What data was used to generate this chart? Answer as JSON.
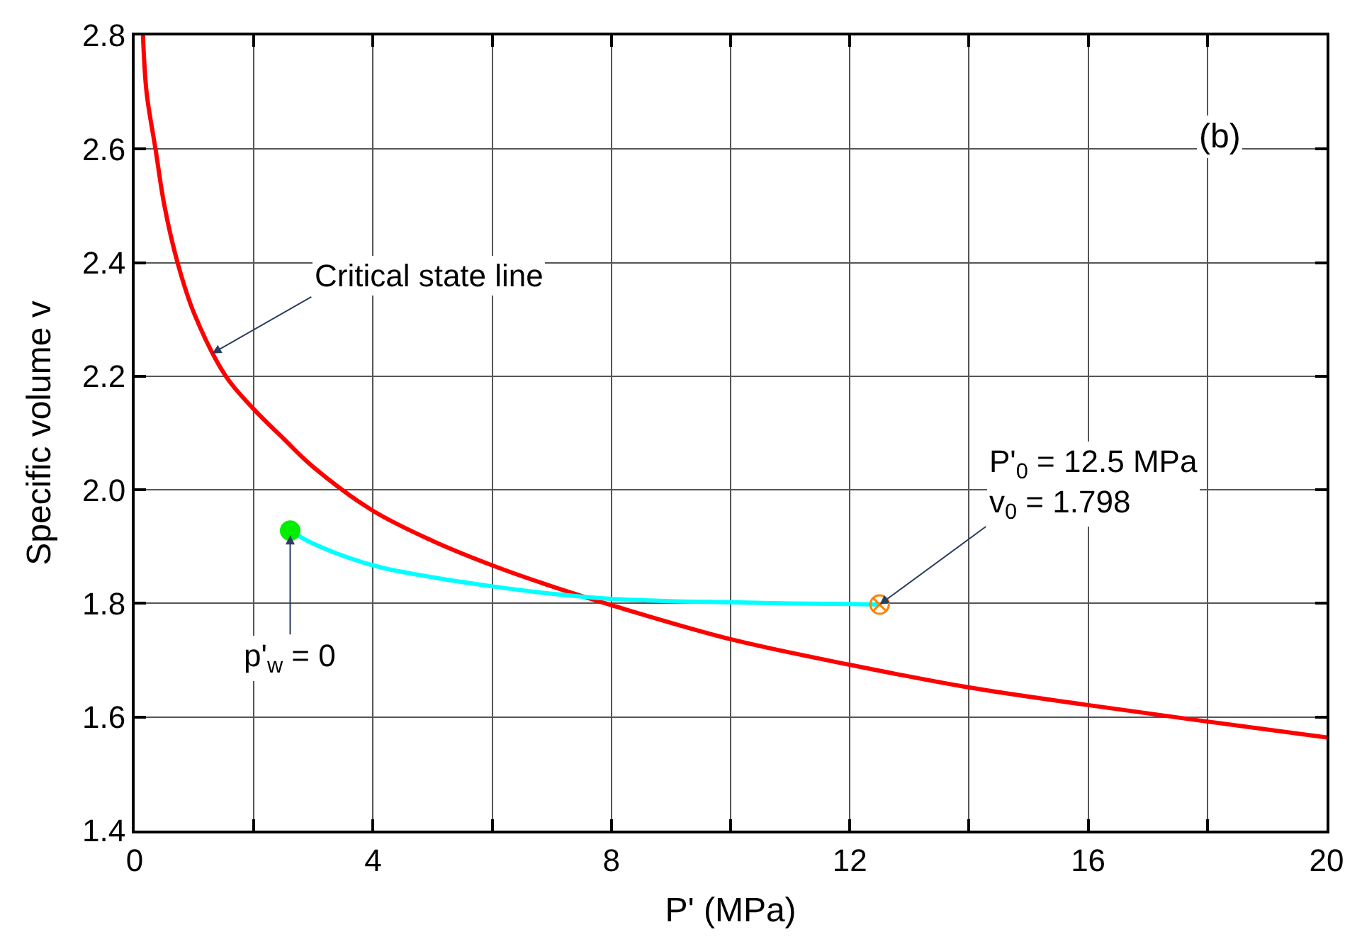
{
  "chart_data": {
    "type": "line",
    "xlabel": "P' (MPa)",
    "ylabel": "Specific volume v",
    "xlim": [
      0,
      20
    ],
    "ylim": [
      1.4,
      2.8
    ],
    "xticks": [
      0,
      {
        "value": 2,
        "label": null
      },
      4,
      {
        "value": 6,
        "label": null
      },
      8,
      {
        "value": 10,
        "label": null
      },
      12,
      {
        "value": 14,
        "label": null
      },
      16,
      {
        "value": 18,
        "label": null
      },
      20
    ],
    "yticks": [
      {
        "value": 1.4,
        "label": "1.4"
      },
      {
        "value": 1.6,
        "label": "1.6"
      },
      {
        "value": 1.8,
        "label": "1.8"
      },
      {
        "value": 2,
        "label": "2.0"
      },
      {
        "value": 2.2,
        "label": "2.2"
      },
      {
        "value": 2.4,
        "label": "2.4"
      },
      {
        "value": 2.6,
        "label": "2.6"
      },
      {
        "value": 2.8,
        "label": "2.8"
      }
    ],
    "grid": true,
    "series": [
      {
        "color": "#ff0000",
        "marker": "none",
        "x": [
          0.14,
          0.2,
          0.35,
          0.5,
          0.72,
          1.0,
          1.53,
          2,
          2.5,
          3,
          4,
          5,
          6,
          7,
          8,
          10,
          12,
          14,
          16,
          18,
          20
        ],
        "values": [
          2.8,
          2.7,
          2.6,
          2.5,
          2.4,
          2.31,
          2.2,
          2.142,
          2.09,
          2.04,
          1.963,
          1.91,
          1.867,
          1.83,
          1.797,
          1.737,
          1.692,
          1.652,
          1.621,
          1.592,
          1.564
        ]
      },
      {
        "color": "#00ffff",
        "marker": "none",
        "x": [
          2.61,
          3,
          4,
          5,
          6,
          7,
          8,
          9,
          10,
          11,
          12,
          12.5
        ],
        "values": [
          1.928,
          1.905,
          1.867,
          1.846,
          1.83,
          1.817,
          1.808,
          1.804,
          1.802,
          1.8,
          1.799,
          1.798
        ]
      },
      {
        "type": "scatter",
        "color": "#00ee00",
        "marker": "circle",
        "x": [
          2.61
        ],
        "values": [
          1.928
        ]
      },
      {
        "type": "scatter",
        "color": "#ff8000",
        "marker": "cross",
        "x": [
          12.5
        ],
        "values": [
          1.798
        ]
      }
    ],
    "annotations": [
      {
        "text": "Critical state line",
        "x": 1.3,
        "y": 2.24
      },
      {
        "text": "p'$_{w}$ = 0",
        "x": 2.61,
        "y": 1.92
      },
      {
        "text": "P'$_{0}$ = 12.5 MPa\nv$_{0}$ = 1.798",
        "x": 12.5,
        "y": 1.798
      },
      "(b)"
    ]
  }
}
